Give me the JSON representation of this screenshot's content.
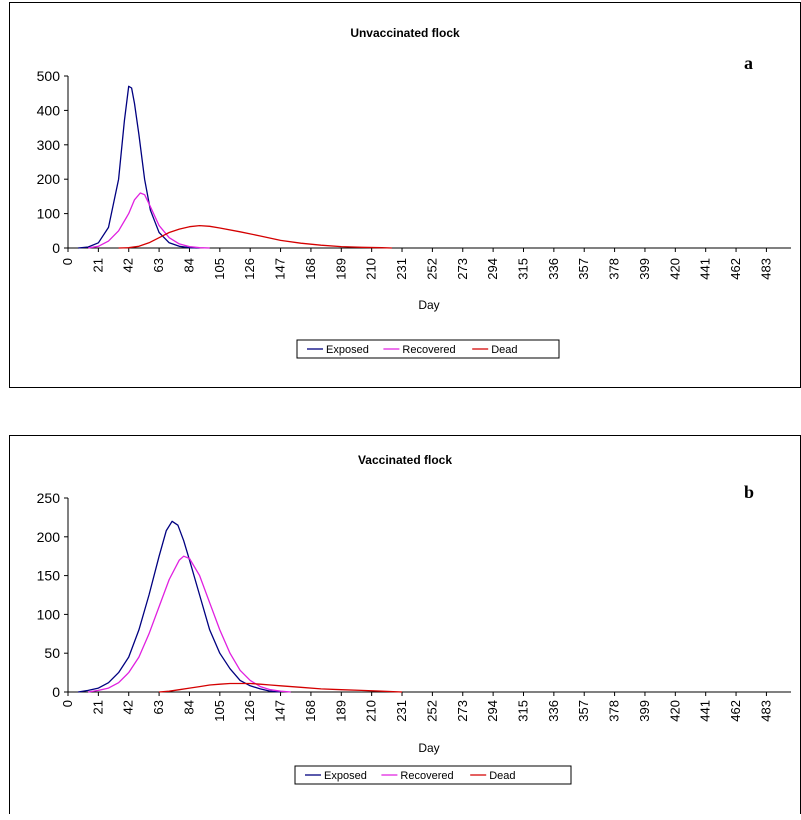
{
  "chart_data": [
    {
      "type": "line",
      "title": "Unvaccinated flock",
      "panel_label": "a",
      "xlabel": "Day",
      "ylabel": "",
      "ylim": [
        0,
        500
      ],
      "yticks": [
        0,
        100,
        200,
        300,
        400,
        500
      ],
      "xlim": [
        0,
        500
      ],
      "xticks": [
        0,
        21,
        42,
        63,
        84,
        105,
        126,
        147,
        168,
        189,
        210,
        231,
        252,
        273,
        294,
        315,
        336,
        357,
        378,
        399,
        420,
        441,
        462,
        483
      ],
      "grid": false,
      "legend": "bottom",
      "series": [
        {
          "name": "Exposed",
          "color": "#000080",
          "points": [
            [
              7,
              0
            ],
            [
              14,
              3
            ],
            [
              21,
              15
            ],
            [
              28,
              60
            ],
            [
              35,
              200
            ],
            [
              39,
              370
            ],
            [
              42,
              470
            ],
            [
              44,
              465
            ],
            [
              46,
              420
            ],
            [
              49,
              330
            ],
            [
              53,
              200
            ],
            [
              57,
              110
            ],
            [
              63,
              45
            ],
            [
              70,
              15
            ],
            [
              77,
              5
            ],
            [
              84,
              1
            ],
            [
              91,
              0
            ]
          ]
        },
        {
          "name": "Recovered",
          "color": "#e020e0",
          "points": [
            [
              14,
              0
            ],
            [
              21,
              5
            ],
            [
              28,
              20
            ],
            [
              35,
              50
            ],
            [
              42,
              100
            ],
            [
              46,
              140
            ],
            [
              50,
              160
            ],
            [
              53,
              155
            ],
            [
              57,
              120
            ],
            [
              63,
              65
            ],
            [
              70,
              30
            ],
            [
              77,
              12
            ],
            [
              84,
              4
            ],
            [
              91,
              1
            ],
            [
              98,
              0
            ]
          ]
        },
        {
          "name": "Dead",
          "color": "#d40000",
          "points": [
            [
              35,
              0
            ],
            [
              42,
              1
            ],
            [
              49,
              5
            ],
            [
              56,
              15
            ],
            [
              63,
              30
            ],
            [
              70,
              45
            ],
            [
              77,
              55
            ],
            [
              84,
              62
            ],
            [
              91,
              65
            ],
            [
              98,
              63
            ],
            [
              105,
              58
            ],
            [
              119,
              47
            ],
            [
              133,
              35
            ],
            [
              147,
              22
            ],
            [
              161,
              14
            ],
            [
              175,
              8
            ],
            [
              189,
              4
            ],
            [
              203,
              2
            ],
            [
              217,
              1
            ],
            [
              224,
              0
            ]
          ]
        }
      ]
    },
    {
      "type": "line",
      "title": "Vaccinated flock",
      "panel_label": "b",
      "xlabel": "Day",
      "ylabel": "",
      "ylim": [
        0,
        250
      ],
      "yticks": [
        0,
        50,
        100,
        150,
        200,
        250
      ],
      "xlim": [
        0,
        500
      ],
      "xticks": [
        0,
        21,
        42,
        63,
        84,
        105,
        126,
        147,
        168,
        189,
        210,
        231,
        252,
        273,
        294,
        315,
        336,
        357,
        378,
        399,
        420,
        441,
        462,
        483
      ],
      "grid": false,
      "legend": "bottom",
      "series": [
        {
          "name": "Exposed",
          "color": "#000080",
          "points": [
            [
              7,
              0
            ],
            [
              14,
              2
            ],
            [
              21,
              5
            ],
            [
              28,
              12
            ],
            [
              35,
              25
            ],
            [
              42,
              45
            ],
            [
              49,
              80
            ],
            [
              56,
              125
            ],
            [
              63,
              175
            ],
            [
              68,
              208
            ],
            [
              72,
              220
            ],
            [
              76,
              215
            ],
            [
              80,
              195
            ],
            [
              84,
              170
            ],
            [
              91,
              125
            ],
            [
              98,
              80
            ],
            [
              105,
              50
            ],
            [
              112,
              30
            ],
            [
              119,
              15
            ],
            [
              126,
              8
            ],
            [
              133,
              4
            ],
            [
              140,
              1
            ],
            [
              147,
              0
            ]
          ]
        },
        {
          "name": "Recovered",
          "color": "#e020e0",
          "points": [
            [
              14,
              0
            ],
            [
              21,
              2
            ],
            [
              28,
              5
            ],
            [
              35,
              12
            ],
            [
              42,
              25
            ],
            [
              49,
              45
            ],
            [
              56,
              75
            ],
            [
              63,
              110
            ],
            [
              70,
              145
            ],
            [
              77,
              170
            ],
            [
              80,
              175
            ],
            [
              84,
              172
            ],
            [
              91,
              150
            ],
            [
              98,
              115
            ],
            [
              105,
              80
            ],
            [
              112,
              50
            ],
            [
              119,
              28
            ],
            [
              126,
              15
            ],
            [
              133,
              7
            ],
            [
              140,
              3
            ],
            [
              147,
              1
            ],
            [
              154,
              0
            ]
          ]
        },
        {
          "name": "Dead",
          "color": "#d40000",
          "points": [
            [
              63,
              0
            ],
            [
              70,
              1
            ],
            [
              77,
              3
            ],
            [
              84,
              5
            ],
            [
              91,
              7
            ],
            [
              98,
              9
            ],
            [
              105,
              10
            ],
            [
              112,
              11
            ],
            [
              119,
              11
            ],
            [
              126,
              11
            ],
            [
              133,
              10
            ],
            [
              140,
              9
            ],
            [
              147,
              8
            ],
            [
              161,
              6
            ],
            [
              175,
              4
            ],
            [
              189,
              3
            ],
            [
              203,
              2
            ],
            [
              217,
              1
            ],
            [
              231,
              0
            ]
          ]
        }
      ]
    }
  ]
}
